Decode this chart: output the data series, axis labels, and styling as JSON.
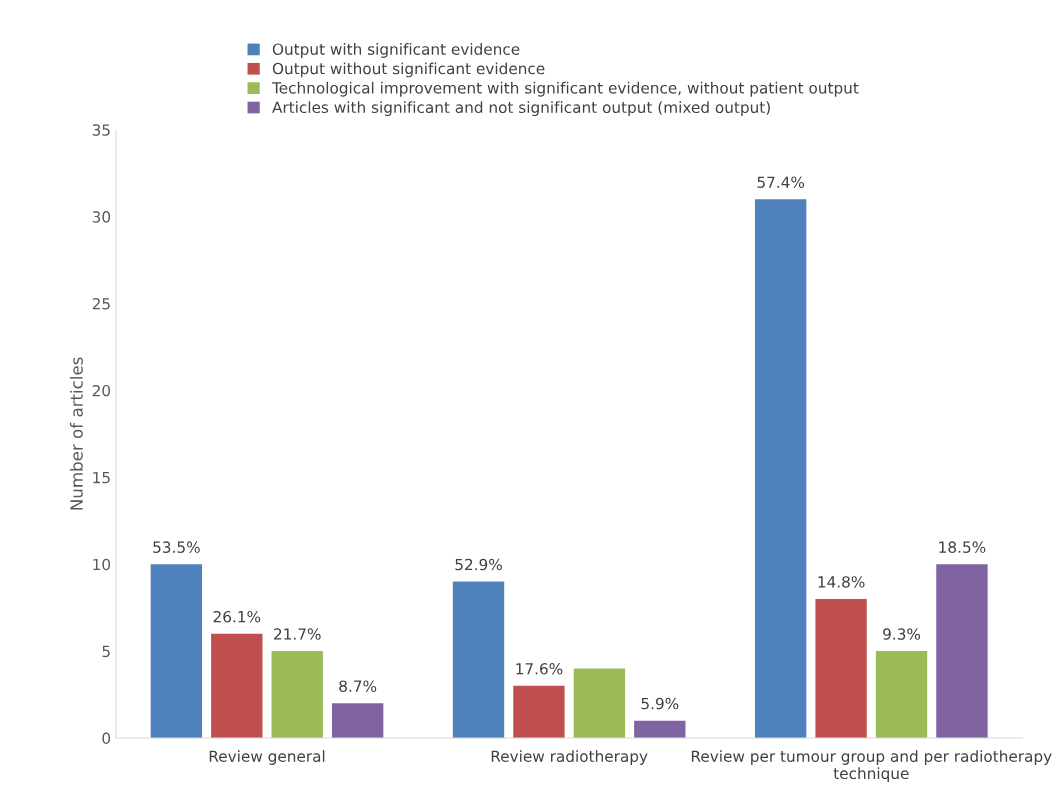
{
  "chart_data": {
    "type": "bar",
    "ylabel": "Number of articles",
    "categories": [
      "Review general",
      "Review radiotherapy",
      "Review per tumour group and per radiotherapy technique"
    ],
    "series": [
      {
        "name": "Output with significant evidence",
        "color": "#4f81bd",
        "values": [
          10,
          9,
          31
        ]
      },
      {
        "name": "Output without significant evidence",
        "color": "#c0504d",
        "values": [
          6,
          3,
          8
        ]
      },
      {
        "name": "Technological improvement with significant evidence, without patient output",
        "color": "#9bbb59",
        "values": [
          5,
          4,
          5
        ]
      },
      {
        "name": "Articles with significant and not significant output (mixed output)",
        "color": "#8064a2",
        "values": [
          2,
          1,
          10
        ]
      }
    ],
    "annotations": [
      "53.5%",
      "52.9%",
      "57.4%",
      "26.1%",
      "17.6%",
      "14.8%",
      "21.7%",
      null,
      "9.3%",
      "8.7%",
      "5.9%",
      "18.5%"
    ],
    "ylim": [
      0,
      35
    ],
    "yticks": [
      0,
      5,
      10,
      15,
      20,
      25,
      30,
      35
    ],
    "grid": false,
    "legend": "top"
  }
}
